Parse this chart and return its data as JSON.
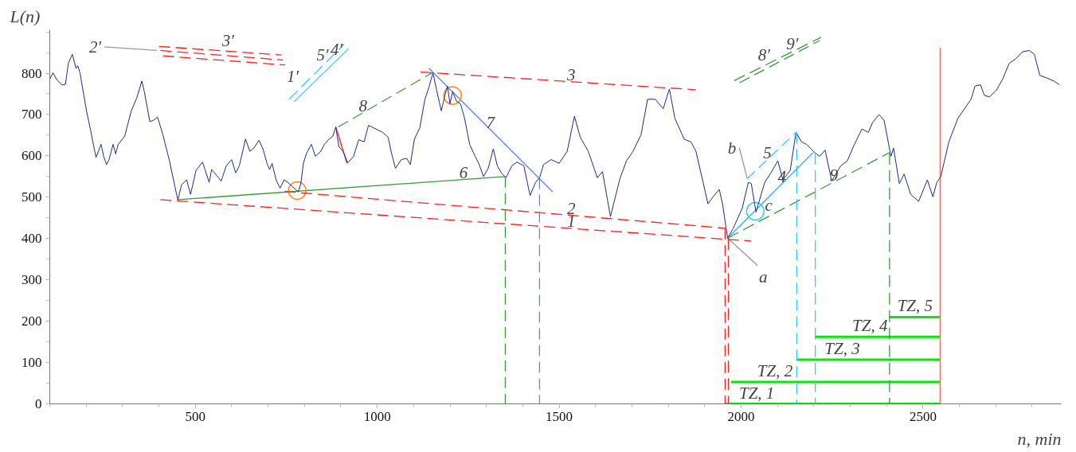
{
  "chart_data": {
    "type": "line",
    "xlabel": "n, min",
    "ylabel": "L(n)",
    "xlim": [
      100,
      2880
    ],
    "ylim": [
      0,
      905
    ],
    "xticks": [
      500,
      1000,
      1500,
      2000,
      2500
    ],
    "yticks": [
      0,
      100,
      200,
      300,
      400,
      500,
      600,
      700,
      800
    ],
    "grid": false,
    "series": [
      {
        "color": "#ff2020",
        "line_style": "dashed",
        "x": [
          404,
          2028
        ],
        "values": [
          494,
          394
        ]
      },
      {
        "color": "#ff2020",
        "line_style": "dashed",
        "x": [
          745,
          1957
        ],
        "values": [
          514,
          425
        ]
      },
      {
        "color": "#ff2020",
        "line_style": "dashed",
        "x": [
          1119,
          1876
        ],
        "values": [
          803,
          760
        ]
      },
      {
        "color": "#ff2020",
        "line_style": "dashed",
        "x": [
          400,
          737
        ],
        "values": [
          865,
          844
        ]
      },
      {
        "color": "#ff2020",
        "line_style": "dashed",
        "x": [
          404,
          741
        ],
        "values": [
          855,
          832
        ]
      },
      {
        "color": "#ff2020",
        "line_style": "dashed",
        "x": [
          411,
          747
        ],
        "values": [
          842,
          820
        ]
      },
      {
        "color": "#999999",
        "line_style": "solid",
        "x": [
          250,
          395
        ],
        "values": [
          864,
          855
        ]
      },
      {
        "color": "#33ccff",
        "line_style": "dashed",
        "x": [
          758,
          909
        ],
        "values": [
          737,
          870
        ]
      },
      {
        "color": "#33ccff",
        "line_style": "solid",
        "x": [
          771,
          921
        ],
        "values": [
          731,
          859
        ]
      },
      {
        "color": "#3a9a3a",
        "line_style": "dashed",
        "x": [
          1981,
          2220
        ],
        "values": [
          782,
          887
        ]
      },
      {
        "color": "#3a9a3a",
        "line_style": "dashed",
        "x": [
          1996,
          2216
        ],
        "values": [
          777,
          879
        ]
      },
      {
        "color": "#3a9a3a",
        "line_style": "solid",
        "x": [
          452,
          1352
        ],
        "values": [
          494,
          550
        ]
      },
      {
        "color": "#3a9a3a",
        "line_style": "dashed",
        "x": [
          893,
          1151
        ],
        "values": [
          670,
          801
        ]
      },
      {
        "color": "#5588ff",
        "line_style": "solid",
        "x": [
          1142,
          1482
        ],
        "values": [
          812,
          513
        ]
      },
      {
        "color": "#ff2020",
        "line_style": "solid",
        "x": [
          886,
          917
        ],
        "values": [
          670,
          582
        ]
      },
      {
        "color": "#33ccff",
        "line_style": "dashed",
        "x": [
          2017,
          2151
        ],
        "values": [
          545,
          657
        ]
      },
      {
        "color": "#1ab2ff",
        "line_style": "solid",
        "x": [
          1963,
          2198
        ],
        "values": [
          401,
          608
        ]
      },
      {
        "color": "#3a9a3a",
        "line_style": "dashed",
        "x": [
          1963,
          2408
        ],
        "values": [
          401,
          608
        ]
      },
      {
        "color": "#3a9a3a",
        "line_style": "dashed",
        "x": [
          1352,
          1352
        ],
        "values": [
          550,
          0
        ]
      },
      {
        "color": "#5588ff",
        "line_style": "dashed",
        "x": [
          1446,
          1446
        ],
        "values": [
          547,
          0
        ]
      },
      {
        "color": "#ff2020",
        "line_style": "dashed",
        "x": [
          1956,
          1956
        ],
        "values": [
          425,
          0
        ]
      },
      {
        "color": "#ff2020",
        "line_style": "dashed",
        "x": [
          1965,
          1965
        ],
        "values": [
          401,
          0
        ]
      },
      {
        "color": "#33ccff",
        "line_style": "dashed",
        "x": [
          2153,
          2153
        ],
        "values": [
          657,
          0
        ]
      },
      {
        "color": "#33ccff",
        "line_style": "dashed",
        "x": [
          2204,
          2204
        ],
        "values": [
          608,
          0
        ]
      },
      {
        "color": "#3a9a3a",
        "line_style": "dashed",
        "x": [
          2408,
          2408
        ],
        "values": [
          608,
          0
        ]
      },
      {
        "color": "#ff6666",
        "line_style": "solid",
        "x": [
          2547,
          2547
        ],
        "values": [
          0,
          862
        ]
      },
      {
        "color": "#00ee00",
        "line_style": "solid",
        "x": [
          1956,
          2547
        ],
        "values": [
          0,
          0
        ]
      },
      {
        "color": "#00ee00",
        "line_style": "solid",
        "x": [
          1972,
          2547
        ],
        "values": [
          53,
          53
        ]
      },
      {
        "color": "#00ee00",
        "line_style": "solid",
        "x": [
          2153,
          2547
        ],
        "values": [
          107,
          107
        ]
      },
      {
        "color": "#00ee00",
        "line_style": "solid",
        "x": [
          2204,
          2547
        ],
        "values": [
          162,
          162
        ]
      },
      {
        "color": "#00ee00",
        "line_style": "solid",
        "x": [
          2408,
          2547
        ],
        "values": [
          210,
          210
        ]
      },
      {
        "color": "#999999",
        "line_style": "solid",
        "x": [
          1963,
          2045
        ],
        "values": [
          401,
          335
        ]
      },
      {
        "color": "#999999",
        "line_style": "solid",
        "x": [
          1995,
          2017
        ],
        "values": [
          620,
          545
        ]
      },
      {
        "type": "scatter",
        "marker": "circle",
        "color": "#ff8c1a",
        "x": [
          780
        ],
        "values": [
          516
        ]
      },
      {
        "type": "scatter",
        "marker": "circle",
        "color": "#ff8c1a",
        "x": [
          1207
        ],
        "values": [
          746
        ]
      },
      {
        "type": "scatter",
        "marker": "circle",
        "color": "#33ccff",
        "x": [
          2039
        ],
        "values": [
          466
        ]
      },
      {
        "color": "#1f2a8a",
        "line_style": "solid",
        "x": [
          100,
          109,
          118,
          133,
          143,
          151,
          162,
          172,
          177,
          183,
          201,
          212,
          227,
          241,
          248,
          256,
          263,
          274,
          281,
          288,
          306,
          324,
          339,
          353,
          360,
          375,
          385,
          396,
          411,
          429,
          440,
          452,
          462,
          476,
          487,
          502,
          520,
          538,
          545,
          564,
          571,
          585,
          600,
          611,
          621,
          638,
          650,
          661,
          675,
          686,
          697,
          704,
          711,
          722,
          733,
          744,
          754,
          769,
          783,
          790,
          797,
          805,
          819,
          830,
          845,
          855,
          866,
          878,
          886,
          895,
          906,
          919,
          935,
          949,
          964,
          976,
          994,
          1015,
          1030,
          1038,
          1050,
          1066,
          1081,
          1091,
          1102,
          1117,
          1131,
          1142,
          1153,
          1163,
          1176,
          1185,
          1193,
          1200,
          1207,
          1218,
          1229,
          1240,
          1254,
          1269,
          1279,
          1292,
          1305,
          1319,
          1330,
          1341,
          1354,
          1370,
          1384,
          1403,
          1420,
          1435,
          1446,
          1457,
          1478,
          1500,
          1522,
          1542,
          1558,
          1580,
          1605,
          1619,
          1641,
          1667,
          1685,
          1703,
          1725,
          1743,
          1764,
          1786,
          1803,
          1818,
          1844,
          1862,
          1876,
          1894,
          1909,
          1923,
          1940,
          1949,
          1963,
          1978,
          2003,
          2020,
          2028,
          2041,
          2065,
          2082,
          2101,
          2115,
          2135,
          2151,
          2166,
          2180,
          2202,
          2216,
          2231,
          2249,
          2274,
          2292,
          2310,
          2332,
          2350,
          2361,
          2379,
          2393,
          2412,
          2419,
          2435,
          2448,
          2466,
          2488,
          2512,
          2527,
          2538,
          2549,
          2571,
          2596,
          2614,
          2632,
          2643,
          2658,
          2669,
          2683,
          2701,
          2719,
          2737,
          2755,
          2774,
          2792,
          2806,
          2821,
          2839,
          2860,
          2875
        ],
        "values": [
          786,
          801,
          786,
          772,
          773,
          824,
          846,
          812,
          818,
          801,
          709,
          663,
          596,
          628,
          599,
          579,
          591,
          628,
          605,
          628,
          648,
          709,
          740,
          781,
          755,
          683,
          686,
          694,
          651,
          588,
          542,
          493,
          530,
          542,
          507,
          565,
          585,
          536,
          567,
          547,
          539,
          576,
          591,
          559,
          576,
          641,
          611,
          619,
          638,
          617,
          582,
          567,
          582,
          542,
          522,
          542,
          536,
          524,
          513,
          533,
          582,
          605,
          628,
          599,
          611,
          628,
          639,
          648,
          670,
          622,
          611,
          583,
          599,
          639,
          634,
          674,
          666,
          657,
          645,
          611,
          570,
          591,
          594,
          579,
          640,
          668,
          737,
          766,
          801,
          760,
          709,
          743,
          769,
          726,
          755,
          732,
          726,
          691,
          628,
          599,
          582,
          550,
          570,
          617,
          576,
          559,
          547,
          576,
          585,
          576,
          504,
          536,
          547,
          579,
          591,
          582,
          611,
          696,
          645,
          611,
          547,
          562,
          453,
          545,
          588,
          611,
          651,
          737,
          737,
          714,
          762,
          691,
          640,
          634,
          611,
          542,
          484,
          501,
          519,
          484,
          401,
          424,
          473,
          536,
          533,
          464,
          536,
          559,
          588,
          542,
          565,
          657,
          634,
          628,
          608,
          599,
          614,
          539,
          576,
          588,
          625,
          665,
          657,
          680,
          700,
          686,
          599,
          619,
          533,
          556,
          507,
          490,
          542,
          501,
          536,
          550,
          634,
          691,
          714,
          737,
          769,
          772,
          746,
          743,
          758,
          786,
          824,
          835,
          852,
          855,
          846,
          795,
          789,
          781,
          772
        ]
      }
    ],
    "annotations": [
      {
        "text": "1",
        "x": 1533,
        "y": 424.5
      },
      {
        "text": "2",
        "x": 1533,
        "y": 456
      },
      {
        "text": "3",
        "x": 1533,
        "y": 779.5
      },
      {
        "text": "1′",
        "x": 747,
        "y": 820
      },
      {
        "text": "2′",
        "x": 250,
        "y": 864
      },
      {
        "text": "3′",
        "x": 590,
        "y": 853
      },
      {
        "text": "4′",
        "x": 888,
        "y": 831
      },
      {
        "text": "5′",
        "x": 850,
        "y": 818
      },
      {
        "text": "8′",
        "x": 2063,
        "y": 818
      },
      {
        "text": "9′",
        "x": 2141,
        "y": 844
      },
      {
        "text": "4",
        "x": 2112,
        "y": 532
      },
      {
        "text": "5",
        "x": 2072,
        "y": 591
      },
      {
        "text": "6",
        "x": 1237,
        "y": 543
      },
      {
        "text": "7",
        "x": 1311,
        "y": 663
      },
      {
        "text": "8",
        "x": 961,
        "y": 704.5
      },
      {
        "text": "9",
        "x": 2255,
        "y": 537
      },
      {
        "text": "a",
        "x": 2045,
        "y": 335
      },
      {
        "text": "b",
        "x": 1995,
        "y": 620
      },
      {
        "text": "c",
        "x": 2076,
        "y": 453.6
      },
      {
        "text": "TZ, 1",
        "x": 2043,
        "y": 0
      },
      {
        "text": "TZ, 2",
        "x": 2093,
        "y": 53
      },
      {
        "text": "TZ, 3",
        "x": 2278,
        "y": 107
      },
      {
        "text": "TZ, 4",
        "x": 2354,
        "y": 162
      },
      {
        "text": "TZ, 5",
        "x": 2478,
        "y": 210
      }
    ]
  }
}
